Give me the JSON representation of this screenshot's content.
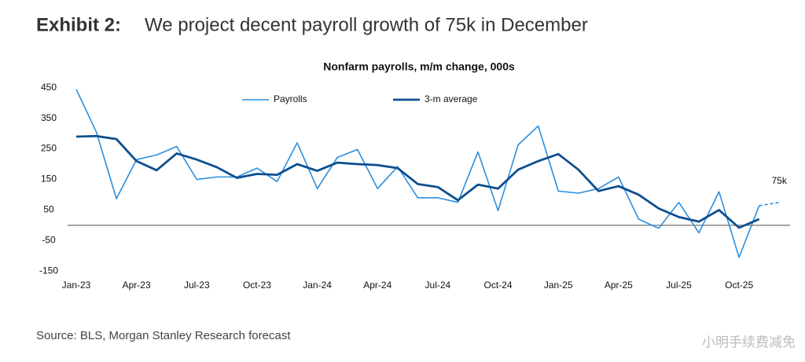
{
  "exhibit": "Exhibit 2:",
  "headline": "We project decent payroll growth of 75k in December",
  "source": "Source: BLS, Morgan Stanley Research forecast",
  "watermark": "小明手续费减免",
  "chart_data": {
    "type": "line",
    "title": "Nonfarm payrolls, m/m change, 000s",
    "categories": [
      "Jan-23",
      null,
      null,
      "Apr-23",
      null,
      null,
      "Jul-23",
      null,
      null,
      "Oct-23",
      null,
      null,
      "Jan-24",
      null,
      null,
      "Apr-24",
      null,
      null,
      "Jul-24",
      null,
      null,
      "Oct-24",
      null,
      null,
      "Jan-25",
      null,
      null,
      "Apr-25",
      null,
      null,
      "Jul-25",
      null,
      null,
      "Oct-25",
      null,
      null
    ],
    "series": [
      {
        "name": "Payrolls",
        "color": "#2b8fe0",
        "values": [
          445,
          305,
          87,
          215,
          230,
          258,
          150,
          158,
          158,
          187,
          143,
          270,
          120,
          222,
          248,
          120,
          192,
          90,
          90,
          75,
          240,
          48,
          263,
          325,
          112,
          105,
          120,
          158,
          20,
          -10,
          75,
          -25,
          110,
          -105,
          64,
          null
        ]
      },
      {
        "name": "3-m average",
        "color": "#0e4f8f",
        "values": [
          290,
          292,
          282,
          210,
          180,
          235,
          215,
          190,
          155,
          168,
          165,
          200,
          178,
          205,
          200,
          197,
          187,
          135,
          125,
          82,
          133,
          120,
          182,
          210,
          233,
          182,
          112,
          128,
          100,
          55,
          27,
          12,
          50,
          -8,
          20,
          null
        ]
      }
    ],
    "forecast": {
      "values": [
        null,
        null,
        null,
        null,
        null,
        null,
        null,
        null,
        null,
        null,
        null,
        null,
        null,
        null,
        null,
        null,
        null,
        null,
        null,
        null,
        null,
        null,
        null,
        null,
        null,
        null,
        null,
        null,
        null,
        null,
        null,
        null,
        null,
        null,
        null,
        75
      ],
      "label": "75k",
      "color": "#2b8fe0"
    },
    "ylim": [
      -175,
      475
    ],
    "yticks": [
      450,
      350,
      250,
      150,
      50,
      -50,
      -150
    ],
    "zero_line": true,
    "legend": "top"
  }
}
